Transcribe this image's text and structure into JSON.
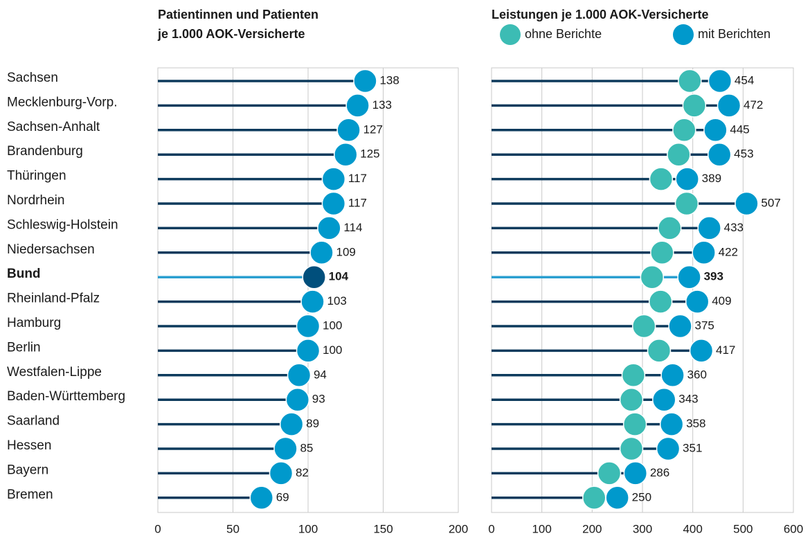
{
  "chart_data": [
    {
      "type": "lollipop",
      "title": [
        "Patientinnen und Patienten",
        "je 1.000 AOK-Versicherte"
      ],
      "categories": [
        "Sachsen",
        "Mecklenburg-Vorp.",
        "Sachsen-Anhalt",
        "Brandenburg",
        "Thüringen",
        "Nordrhein",
        "Schleswig-Holstein",
        "Niedersachsen",
        "Bund",
        "Rheinland-Pfalz",
        "Hamburg",
        "Berlin",
        "Westfalen-Lippe",
        "Baden-Württemberg",
        "Saarland",
        "Hessen",
        "Bayern",
        "Bremen"
      ],
      "series": [
        {
          "color": "#0099cc",
          "values": [
            138,
            133,
            127,
            125,
            117,
            117,
            114,
            109,
            104,
            103,
            100,
            100,
            94,
            93,
            89,
            85,
            82,
            69
          ]
        }
      ],
      "xlim": [
        0,
        200
      ],
      "xticks": [
        0,
        50,
        100,
        150,
        200
      ],
      "grid": true,
      "line_color": "#0d3a5c",
      "highlight": 8,
      "highlight_line_color": "#2a9fd0",
      "highlight_color": "#004f7c"
    },
    {
      "type": "lollipop",
      "title": [
        "Leistungen je 1.000 AOK-Versicherte"
      ],
      "series": [
        {
          "name": "ohne Berichte",
          "color": "#3cbcb4",
          "values": [
            394,
            403,
            383,
            372,
            337,
            388,
            354,
            339,
            319,
            336,
            303,
            333,
            282,
            278,
            285,
            278,
            234,
            204
          ]
        },
        {
          "name": "mit Berichten",
          "color": "#0099cc",
          "values": [
            454,
            472,
            445,
            453,
            389,
            507,
            433,
            422,
            393,
            409,
            375,
            417,
            360,
            343,
            358,
            351,
            286,
            250
          ]
        }
      ],
      "xlim": [
        0,
        600
      ],
      "xticks": [
        0,
        100,
        200,
        300,
        400,
        500,
        600
      ],
      "grid": true,
      "line_color": "#0d3a5c",
      "highlight": 8,
      "highlight_line_color": "#2a9fd0",
      "legend": "top"
    }
  ]
}
